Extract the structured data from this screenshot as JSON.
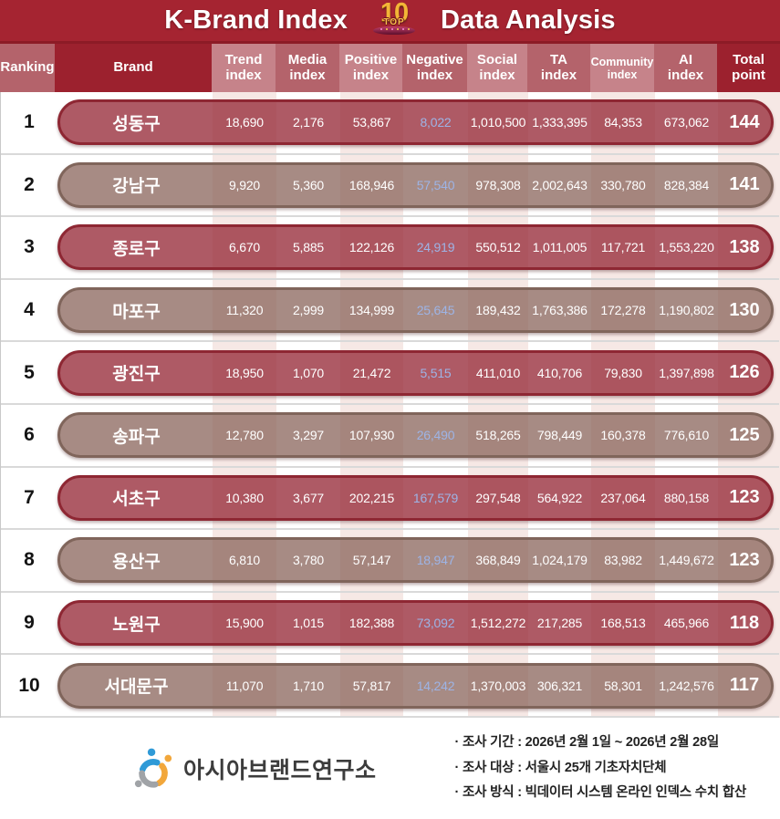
{
  "title": {
    "left": "K-Brand Index",
    "right": "Data Analysis",
    "badge": {
      "number": "10",
      "top_label": "TOP"
    }
  },
  "header": {
    "columns": [
      {
        "label": "Ranking"
      },
      {
        "label": "Brand"
      },
      {
        "label": "Trend\nindex"
      },
      {
        "label": "Media\nindex"
      },
      {
        "label": "Positive\nindex"
      },
      {
        "label": "Negative\nindex"
      },
      {
        "label": "Social\nindex"
      },
      {
        "label": "TA\nindex"
      },
      {
        "label": "Community\nindex"
      },
      {
        "label": "AI\nindex"
      },
      {
        "label": "Total\npoint"
      }
    ]
  },
  "chart_data": {
    "type": "table",
    "title": "K-Brand Index TOP 10 Data Analysis",
    "columns": [
      "Ranking",
      "Brand",
      "Trend index",
      "Media index",
      "Positive index",
      "Negative index",
      "Social index",
      "TA index",
      "Community index",
      "AI index",
      "Total point"
    ],
    "rows": [
      {
        "rank": "1",
        "brand": "성동구",
        "values": [
          "18,690",
          "2,176",
          "53,867",
          "8,022",
          "1,010,500",
          "1,333,395",
          "84,353",
          "673,062"
        ],
        "total": "144"
      },
      {
        "rank": "2",
        "brand": "강남구",
        "values": [
          "9,920",
          "5,360",
          "168,946",
          "57,540",
          "978,308",
          "2,002,643",
          "330,780",
          "828,384"
        ],
        "total": "141"
      },
      {
        "rank": "3",
        "brand": "종로구",
        "values": [
          "6,670",
          "5,885",
          "122,126",
          "24,919",
          "550,512",
          "1,011,005",
          "117,721",
          "1,553,220"
        ],
        "total": "138"
      },
      {
        "rank": "4",
        "brand": "마포구",
        "values": [
          "11,320",
          "2,999",
          "134,999",
          "25,645",
          "189,432",
          "1,763,386",
          "172,278",
          "1,190,802"
        ],
        "total": "130"
      },
      {
        "rank": "5",
        "brand": "광진구",
        "values": [
          "18,950",
          "1,070",
          "21,472",
          "5,515",
          "411,010",
          "410,706",
          "79,830",
          "1,397,898"
        ],
        "total": "126"
      },
      {
        "rank": "6",
        "brand": "송파구",
        "values": [
          "12,780",
          "3,297",
          "107,930",
          "26,490",
          "518,265",
          "798,449",
          "160,378",
          "776,610"
        ],
        "total": "125"
      },
      {
        "rank": "7",
        "brand": "서초구",
        "values": [
          "10,380",
          "3,677",
          "202,215",
          "167,579",
          "297,548",
          "564,922",
          "237,064",
          "880,158"
        ],
        "total": "123"
      },
      {
        "rank": "8",
        "brand": "용산구",
        "values": [
          "6,810",
          "3,780",
          "57,147",
          "18,947",
          "368,849",
          "1,024,179",
          "83,982",
          "1,449,672"
        ],
        "total": "123"
      },
      {
        "rank": "9",
        "brand": "노원구",
        "values": [
          "15,900",
          "1,015",
          "182,388",
          "73,092",
          "1,512,272",
          "217,285",
          "168,513",
          "465,966"
        ],
        "total": "118"
      },
      {
        "rank": "10",
        "brand": "서대문구",
        "values": [
          "11,070",
          "1,710",
          "57,817",
          "14,242",
          "1,370,003",
          "306,321",
          "58,301",
          "1,242,576"
        ],
        "total": "117"
      }
    ]
  },
  "footer": {
    "org_name": "아시아브랜드연구소",
    "notes": [
      "· 조사 기간 : 2026년 2월 1일 ~ 2026년 2월 28일",
      "· 조사 대상 : 서울시 25개 기초자치단체",
      "· 조사 방식 : 빅데이터 시스템 온라인 인덱스 수치 합산"
    ]
  },
  "colors": {
    "title_bar": "#a52431",
    "header_dark": "#9c212e",
    "header_medium": "#b4636b",
    "header_light": "#c6838a",
    "pill_odd_border": "#8e2733",
    "pill_even_border": "#80655b",
    "negative_value_text": "#9db4e6",
    "column_stripe": "#f6e8e5",
    "badge_gold": "#f3b537"
  }
}
